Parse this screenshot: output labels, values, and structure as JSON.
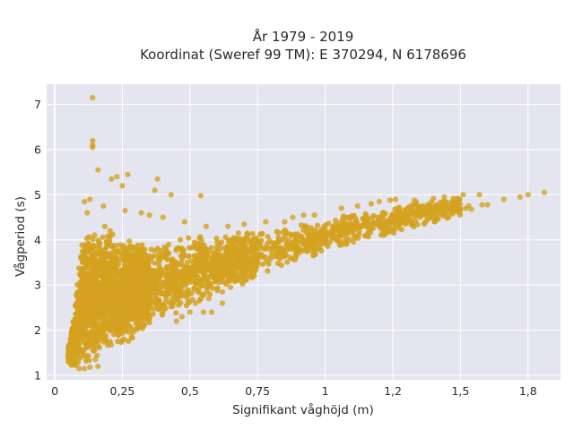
{
  "chart_data": {
    "type": "scatter",
    "title_lines": [
      "År 1979 - 2019",
      "Koordinat (Sweref 99 TM): E 370294, N 6178696"
    ],
    "xlabel": "Signifikant våghöjd (m)",
    "ylabel": "Vågperiod (s)",
    "xlim": [
      -0.03,
      1.87
    ],
    "ylim": [
      0.9,
      7.45
    ],
    "x_ticks": [
      0,
      0.25,
      0.5,
      0.75,
      1,
      1.25,
      1.5,
      1.75
    ],
    "x_tick_labels": [
      "0",
      "0,25",
      "0,5",
      "0,75",
      "1",
      "1,2",
      "1,5",
      "1,8"
    ],
    "y_ticks": [
      1,
      2,
      3,
      4,
      5,
      6,
      7
    ],
    "y_tick_labels": [
      "1",
      "2",
      "3",
      "4",
      "5",
      "6",
      "7"
    ],
    "marker_color": "#D4A21F",
    "plot_bg": "#E5E5EF",
    "grid": true,
    "series": [
      {
        "density_envelope": [
          [
            0.05,
            1.25,
            1.6
          ],
          [
            0.08,
            1.15,
            2.9
          ],
          [
            0.1,
            1.15,
            4.0
          ],
          [
            0.15,
            1.2,
            4.4
          ],
          [
            0.2,
            1.45,
            4.3
          ],
          [
            0.25,
            1.65,
            4.2
          ],
          [
            0.3,
            1.8,
            4.0
          ],
          [
            0.35,
            2.0,
            3.95
          ],
          [
            0.4,
            2.2,
            4.0
          ],
          [
            0.45,
            2.35,
            4.05
          ],
          [
            0.5,
            2.5,
            4.1
          ],
          [
            0.55,
            2.65,
            4.1
          ],
          [
            0.6,
            2.8,
            4.15
          ],
          [
            0.65,
            2.9,
            4.15
          ],
          [
            0.7,
            3.0,
            4.2
          ],
          [
            0.8,
            3.25,
            4.25
          ],
          [
            0.9,
            3.5,
            4.35
          ],
          [
            1.0,
            3.7,
            4.45
          ],
          [
            1.1,
            3.9,
            4.6
          ],
          [
            1.2,
            4.05,
            4.7
          ],
          [
            1.3,
            4.2,
            4.85
          ],
          [
            1.4,
            4.35,
            4.9
          ],
          [
            1.5,
            4.5,
            5.0
          ]
        ],
        "points": [
          [
            0.14,
            7.15
          ],
          [
            0.14,
            6.2
          ],
          [
            0.14,
            6.1
          ],
          [
            0.14,
            6.05
          ],
          [
            0.16,
            5.55
          ],
          [
            0.21,
            5.35
          ],
          [
            0.23,
            5.4
          ],
          [
            0.27,
            5.45
          ],
          [
            0.25,
            5.2
          ],
          [
            0.38,
            5.35
          ],
          [
            0.37,
            5.1
          ],
          [
            0.43,
            5.0
          ],
          [
            0.54,
            4.98
          ],
          [
            0.11,
            4.85
          ],
          [
            0.13,
            4.9
          ],
          [
            0.18,
            4.75
          ],
          [
            0.26,
            4.65
          ],
          [
            0.32,
            4.6
          ],
          [
            0.35,
            4.55
          ],
          [
            0.4,
            4.5
          ],
          [
            0.12,
            4.6
          ],
          [
            0.48,
            4.4
          ],
          [
            0.56,
            4.3
          ],
          [
            0.64,
            4.3
          ],
          [
            0.7,
            4.35
          ],
          [
            0.78,
            4.4
          ],
          [
            0.85,
            4.4
          ],
          [
            0.88,
            4.5
          ],
          [
            0.92,
            4.55
          ],
          [
            0.96,
            4.55
          ],
          [
            1.06,
            4.7
          ],
          [
            1.12,
            4.75
          ],
          [
            1.17,
            4.8
          ],
          [
            1.2,
            4.85
          ],
          [
            1.24,
            4.88
          ],
          [
            1.26,
            4.9
          ],
          [
            1.33,
            4.88
          ],
          [
            1.38,
            4.75
          ],
          [
            1.4,
            4.92
          ],
          [
            1.44,
            4.95
          ],
          [
            1.46,
            4.7
          ],
          [
            1.47,
            4.85
          ],
          [
            1.49,
            4.92
          ],
          [
            1.51,
            5.0
          ],
          [
            1.52,
            4.7
          ],
          [
            1.53,
            4.75
          ],
          [
            1.54,
            4.68
          ],
          [
            1.57,
            5.0
          ],
          [
            1.58,
            4.78
          ],
          [
            1.6,
            4.78
          ],
          [
            1.66,
            4.9
          ],
          [
            1.72,
            4.95
          ],
          [
            1.75,
            5.0
          ],
          [
            1.81,
            5.05
          ],
          [
            0.05,
            1.45
          ],
          [
            0.05,
            1.6
          ],
          [
            0.06,
            1.3
          ],
          [
            0.08,
            1.22
          ],
          [
            0.09,
            1.15
          ],
          [
            0.11,
            1.15
          ],
          [
            0.13,
            1.18
          ],
          [
            0.16,
            1.2
          ],
          [
            0.15,
            1.35
          ],
          [
            0.5,
            2.4
          ],
          [
            0.55,
            2.4
          ],
          [
            0.58,
            2.4
          ],
          [
            0.62,
            2.6
          ],
          [
            0.62,
            2.85
          ],
          [
            0.65,
            2.95
          ],
          [
            0.45,
            2.2
          ],
          [
            0.47,
            2.3
          ],
          [
            0.52,
            2.6
          ],
          [
            0.57,
            2.7
          ],
          [
            0.07,
            1.5
          ],
          [
            0.06,
            1.4
          ]
        ]
      }
    ]
  }
}
